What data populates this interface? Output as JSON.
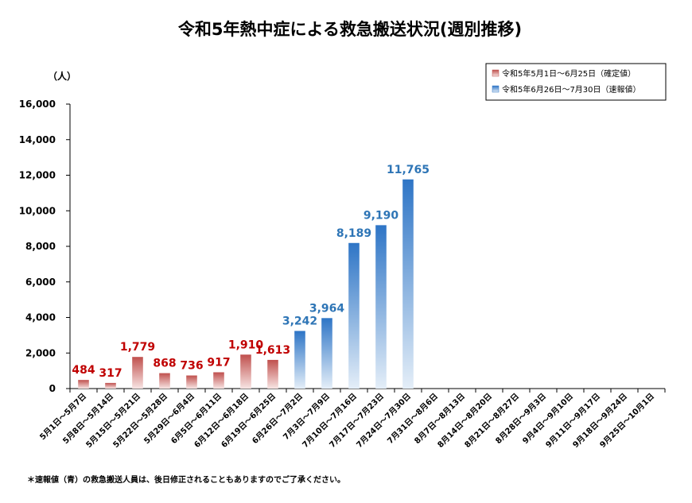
{
  "chart_data": {
    "type": "bar",
    "title": "令和5年熱中症による救急搬送状況(週別推移)",
    "ylabel": "（人）",
    "xlabel": "",
    "ylim": [
      0,
      16000
    ],
    "yticks": [
      0,
      2000,
      4000,
      6000,
      8000,
      10000,
      12000,
      14000,
      16000
    ],
    "ytick_labels": [
      "0",
      "2,000",
      "4,000",
      "6,000",
      "8,000",
      "10,000",
      "12,000",
      "14,000",
      "16,000"
    ],
    "grid": false,
    "legend_position": "top-right",
    "categories": [
      "5月1日～5月7日",
      "5月8日～5月14日",
      "5月15日～5月21日",
      "5月22日～5月28日",
      "5月29日～6月4日",
      "6月5日～6月11日",
      "6月12日～6月18日",
      "6月19日～6月25日",
      "6月26日～7月2日",
      "7月3日～7月9日",
      "7月10日～7月16日",
      "7月17日～7月23日",
      "7月24日～7月30日",
      "7月31日～8月6日",
      "8月7日～8月13日",
      "8月14日～8月20日",
      "8月21日～8月27日",
      "8月28日～9月3日",
      "9月4日～9月10日",
      "9月11日～9月17日",
      "9月18日～9月24日",
      "9月25日～10月1日"
    ],
    "series": [
      {
        "name": "令和5年5月1日～6月25日（確定値）",
        "color": "#c0504d",
        "label_color": "#c00000",
        "values": [
          484,
          317,
          1779,
          868,
          736,
          917,
          1910,
          1613,
          null,
          null,
          null,
          null,
          null,
          null,
          null,
          null,
          null,
          null,
          null,
          null,
          null,
          null
        ],
        "value_labels": [
          "484",
          "317",
          "1,779",
          "868",
          "736",
          "917",
          "1,910",
          "1,613",
          "",
          "",
          "",
          "",
          "",
          "",
          "",
          "",
          "",
          "",
          "",
          "",
          "",
          ""
        ]
      },
      {
        "name": "令和5年6月26日～7月30日（速報値）",
        "color": "#4a86c8",
        "label_color": "#2e75b6",
        "values": [
          null,
          null,
          null,
          null,
          null,
          null,
          null,
          null,
          3242,
          3964,
          8189,
          9190,
          11765,
          null,
          null,
          null,
          null,
          null,
          null,
          null,
          null,
          null
        ],
        "value_labels": [
          "",
          "",
          "",
          "",
          "",
          "",
          "",
          "",
          "3,242",
          "3,964",
          "8,189",
          "9,190",
          "11,765",
          "",
          "",
          "",
          "",
          "",
          "",
          "",
          "",
          ""
        ]
      }
    ]
  },
  "footnote": "＊速報値（青）の救急搬送人員は、後日修正されることもありますのでご了承ください。"
}
